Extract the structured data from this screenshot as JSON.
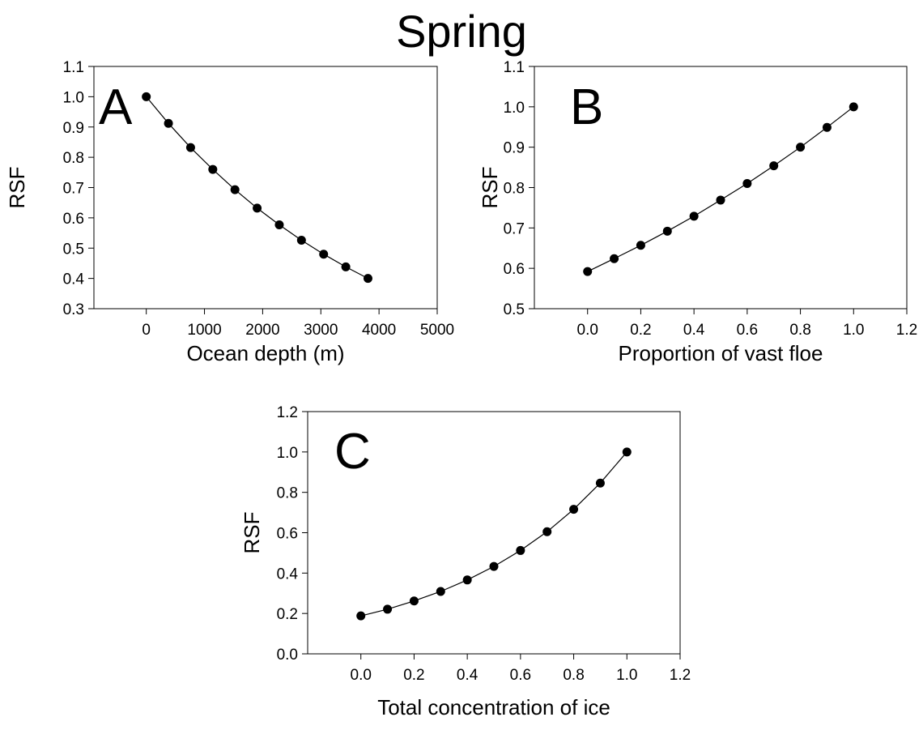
{
  "figure_title": "Spring",
  "chart_data": [
    {
      "type": "line",
      "panel": "A",
      "xlabel": "Ocean depth (m)",
      "ylabel": "RSF",
      "xlim": [
        -900,
        5000
      ],
      "ylim": [
        0.3,
        1.1
      ],
      "xticks": [
        0,
        1000,
        2000,
        3000,
        4000,
        5000
      ],
      "yticks": [
        0.3,
        0.4,
        0.5,
        0.6,
        0.7,
        0.8,
        0.9,
        1.0,
        1.1
      ],
      "xtick_labels": [
        "0",
        "1000",
        "2000",
        "3000",
        "4000",
        "5000"
      ],
      "ytick_labels": [
        "0.3",
        "0.4",
        "0.5",
        "0.6",
        "0.7",
        "0.8",
        "0.9",
        "1.0",
        "1.1"
      ],
      "grid": false,
      "series": [
        {
          "x": [
            0,
            381,
            762,
            1143,
            1524,
            1905,
            2286,
            2667,
            3048,
            3429,
            3810
          ],
          "y": [
            1.0,
            0.912,
            0.832,
            0.76,
            0.693,
            0.632,
            0.577,
            0.526,
            0.48,
            0.438,
            0.4
          ]
        }
      ]
    },
    {
      "type": "line",
      "panel": "B",
      "xlabel": "Proportion of vast floe",
      "ylabel": "RSF",
      "xlim": [
        -0.2,
        1.2
      ],
      "ylim": [
        0.5,
        1.1
      ],
      "xticks": [
        0.0,
        0.2,
        0.4,
        0.6,
        0.8,
        1.0,
        1.2
      ],
      "yticks": [
        0.5,
        0.6,
        0.7,
        0.8,
        0.9,
        1.0,
        1.1
      ],
      "xtick_labels": [
        "0.0",
        "0.2",
        "0.4",
        "0.6",
        "0.8",
        "1.0",
        "1.2"
      ],
      "ytick_labels": [
        "0.5",
        "0.6",
        "0.7",
        "0.8",
        "0.9",
        "1.0",
        "1.1"
      ],
      "grid": false,
      "series": [
        {
          "x": [
            0.0,
            0.1,
            0.2,
            0.3,
            0.4,
            0.5,
            0.6,
            0.7,
            0.8,
            0.9,
            1.0
          ],
          "y": [
            0.592,
            0.624,
            0.657,
            0.692,
            0.729,
            0.769,
            0.81,
            0.854,
            0.9,
            0.949,
            1.0
          ]
        }
      ]
    },
    {
      "type": "line",
      "panel": "C",
      "xlabel": "Total concentration of ice",
      "ylabel": "RSF",
      "xlim": [
        -0.2,
        1.2
      ],
      "ylim": [
        0.0,
        1.2
      ],
      "xticks": [
        0.0,
        0.2,
        0.4,
        0.6,
        0.8,
        1.0,
        1.2
      ],
      "yticks": [
        0.0,
        0.2,
        0.4,
        0.6,
        0.8,
        1.0,
        1.2
      ],
      "xtick_labels": [
        "0.0",
        "0.2",
        "0.4",
        "0.6",
        "0.8",
        "1.0",
        "1.2"
      ],
      "ytick_labels": [
        "0.0",
        "0.2",
        "0.4",
        "0.6",
        "0.8",
        "1.0",
        "1.2"
      ],
      "grid": false,
      "series": [
        {
          "x": [
            0.0,
            0.1,
            0.2,
            0.3,
            0.4,
            0.5,
            0.6,
            0.7,
            0.8,
            0.9,
            1.0
          ],
          "y": [
            0.188,
            0.221,
            0.262,
            0.309,
            0.366,
            0.433,
            0.512,
            0.605,
            0.716,
            0.846,
            1.0
          ]
        }
      ]
    }
  ]
}
